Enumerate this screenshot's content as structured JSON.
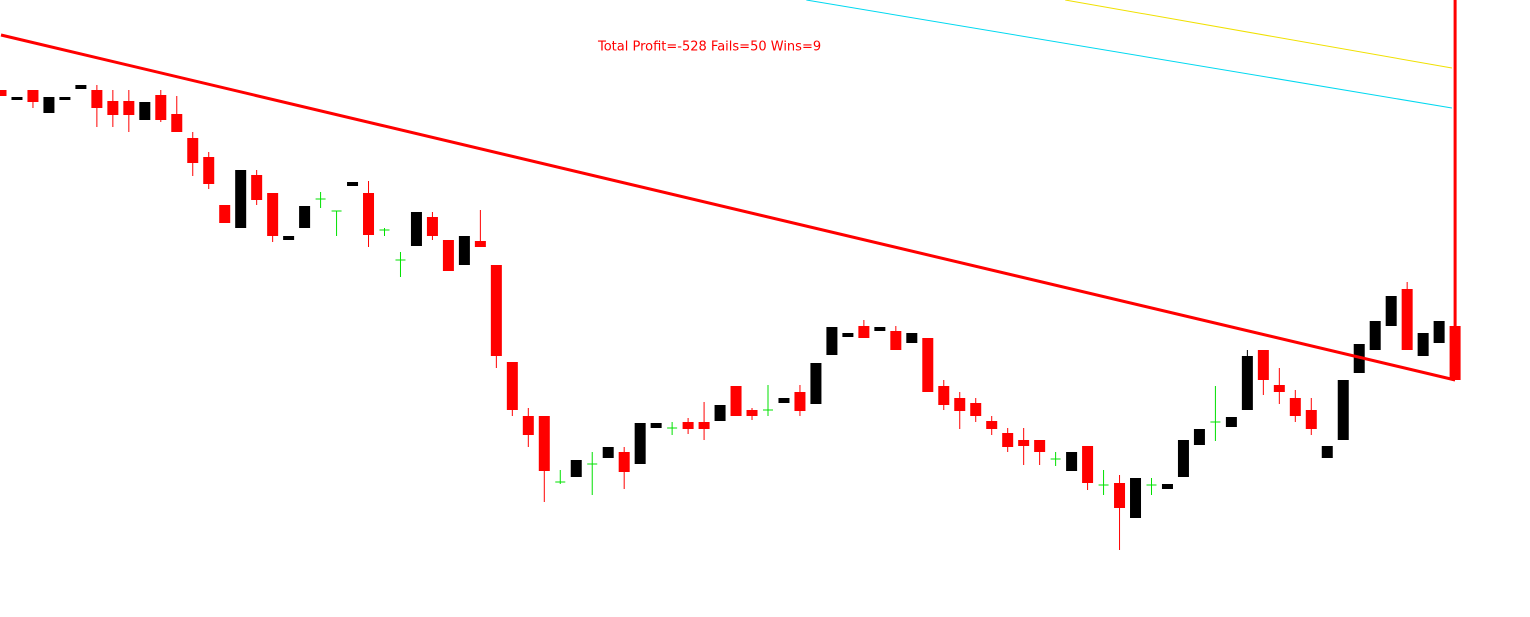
{
  "chart_data": {
    "type": "candlestick",
    "annotation": "Total Profit=-528 Fails=50 Wins=9",
    "annotation_color": "#ff0000",
    "background": "#ffffff",
    "up_color": "#000000",
    "down_color": "#ff0000",
    "doji_color": "#00e000",
    "xlim": [
      -0.0625,
      95.6875
    ],
    "ylim": [
      0,
      613
    ],
    "categories": [
      null,
      null,
      null,
      null,
      null,
      null,
      null,
      null,
      null,
      null,
      null,
      null,
      null,
      null,
      null,
      null,
      null,
      null,
      null,
      null,
      null,
      null,
      null,
      null,
      null,
      null,
      null,
      null,
      null,
      null,
      null,
      null,
      null,
      null,
      null,
      null,
      null,
      null,
      null,
      null,
      null,
      null,
      null,
      null,
      null,
      null,
      null,
      null,
      null,
      null,
      null,
      null,
      null,
      null,
      null,
      null,
      null,
      null,
      null,
      null,
      null,
      null,
      null,
      null,
      null,
      null,
      null,
      null,
      null,
      null,
      null,
      null,
      null,
      null,
      null,
      null,
      null,
      null,
      null,
      null,
      null,
      null,
      null,
      null,
      null,
      null,
      null,
      null,
      null,
      null,
      null,
      null
    ],
    "open": [
      523,
      513,
      523,
      500,
      513,
      524,
      523,
      512,
      512,
      493,
      518,
      499,
      475,
      456,
      408,
      385,
      438,
      420,
      373,
      385,
      414,
      402,
      427,
      420,
      383,
      353,
      367,
      396,
      373,
      348,
      372,
      348,
      251,
      197,
      197,
      131,
      136,
      149,
      155,
      161,
      149,
      185,
      185,
      191,
      191,
      192,
      227,
      203,
      203,
      210,
      221,
      209,
      258,
      276,
      287,
      282,
      282,
      270,
      275,
      227,
      215,
      210,
      192,
      180,
      173,
      173,
      154,
      142,
      167,
      128,
      130,
      95,
      128,
      124,
      136,
      168,
      191,
      186,
      203,
      263,
      228,
      215,
      203,
      155,
      173,
      240,
      263,
      287,
      324,
      257,
      270,
      287
    ],
    "high": [
      523,
      516,
      523,
      516,
      516,
      528,
      528,
      523,
      523,
      511,
      523,
      517,
      481,
      461,
      408,
      443,
      443,
      420,
      377,
      407,
      421,
      402,
      431,
      432,
      385,
      361,
      401,
      401,
      373,
      377,
      403,
      348,
      251,
      205,
      197,
      143,
      153,
      161,
      166,
      166,
      190,
      190,
      191,
      195,
      211,
      208,
      227,
      205,
      228,
      215,
      228,
      250,
      286,
      280,
      293,
      286,
      287,
      280,
      275,
      233,
      221,
      215,
      197,
      185,
      185,
      173,
      161,
      161,
      167,
      143,
      138,
      135,
      135,
      129,
      173,
      184,
      227,
      196,
      263,
      263,
      245,
      223,
      215,
      167,
      233,
      269,
      292,
      317,
      331,
      280,
      292,
      287
    ],
    "low": [
      517,
      513,
      505,
      500,
      513,
      524,
      486,
      486,
      481,
      493,
      491,
      481,
      437,
      424,
      390,
      385,
      408,
      371,
      373,
      385,
      405,
      377,
      427,
      366,
      377,
      336,
      367,
      373,
      342,
      348,
      366,
      245,
      197,
      166,
      111,
      129,
      136,
      118,
      155,
      124,
      149,
      185,
      178,
      179,
      173,
      192,
      197,
      193,
      197,
      210,
      197,
      209,
      258,
      276,
      275,
      282,
      263,
      270,
      221,
      203,
      184,
      191,
      178,
      161,
      148,
      148,
      147,
      142,
      123,
      118,
      63,
      95,
      118,
      124,
      136,
      168,
      172,
      186,
      203,
      218,
      209,
      191,
      178,
      155,
      173,
      240,
      263,
      287,
      263,
      257,
      270,
      233
    ],
    "close": [
      517,
      516,
      511,
      516,
      516,
      528,
      505,
      498,
      498,
      511,
      493,
      481,
      450,
      429,
      390,
      443,
      413,
      377,
      377,
      407,
      414,
      402,
      431,
      378,
      383,
      353,
      401,
      377,
      342,
      377,
      366,
      257,
      203,
      178,
      142,
      131,
      153,
      149,
      166,
      141,
      190,
      190,
      185,
      184,
      184,
      208,
      197,
      197,
      203,
      215,
      202,
      250,
      286,
      280,
      275,
      286,
      263,
      280,
      221,
      208,
      202,
      197,
      184,
      166,
      167,
      161,
      154,
      161,
      130,
      128,
      105,
      135,
      128,
      129,
      173,
      184,
      191,
      196,
      257,
      233,
      221,
      197,
      184,
      167,
      233,
      269,
      292,
      317,
      263,
      280,
      292,
      233
    ],
    "lines": [
      {
        "color": "#ff0000",
        "width": 3,
        "x": [
          0,
          91
        ],
        "values": [
          578,
          233
        ]
      },
      {
        "color": "#ff0000",
        "width": 3,
        "x": [
          91,
          91
        ],
        "values": [
          613,
          233
        ]
      },
      {
        "color": "#00d8f0",
        "width": 1,
        "x": [
          50.4,
          90.8
        ],
        "values": [
          613,
          505
        ]
      },
      {
        "color": "#f0e000",
        "width": 1,
        "x": [
          66.6,
          90.8
        ],
        "values": [
          613,
          545
        ]
      }
    ]
  }
}
